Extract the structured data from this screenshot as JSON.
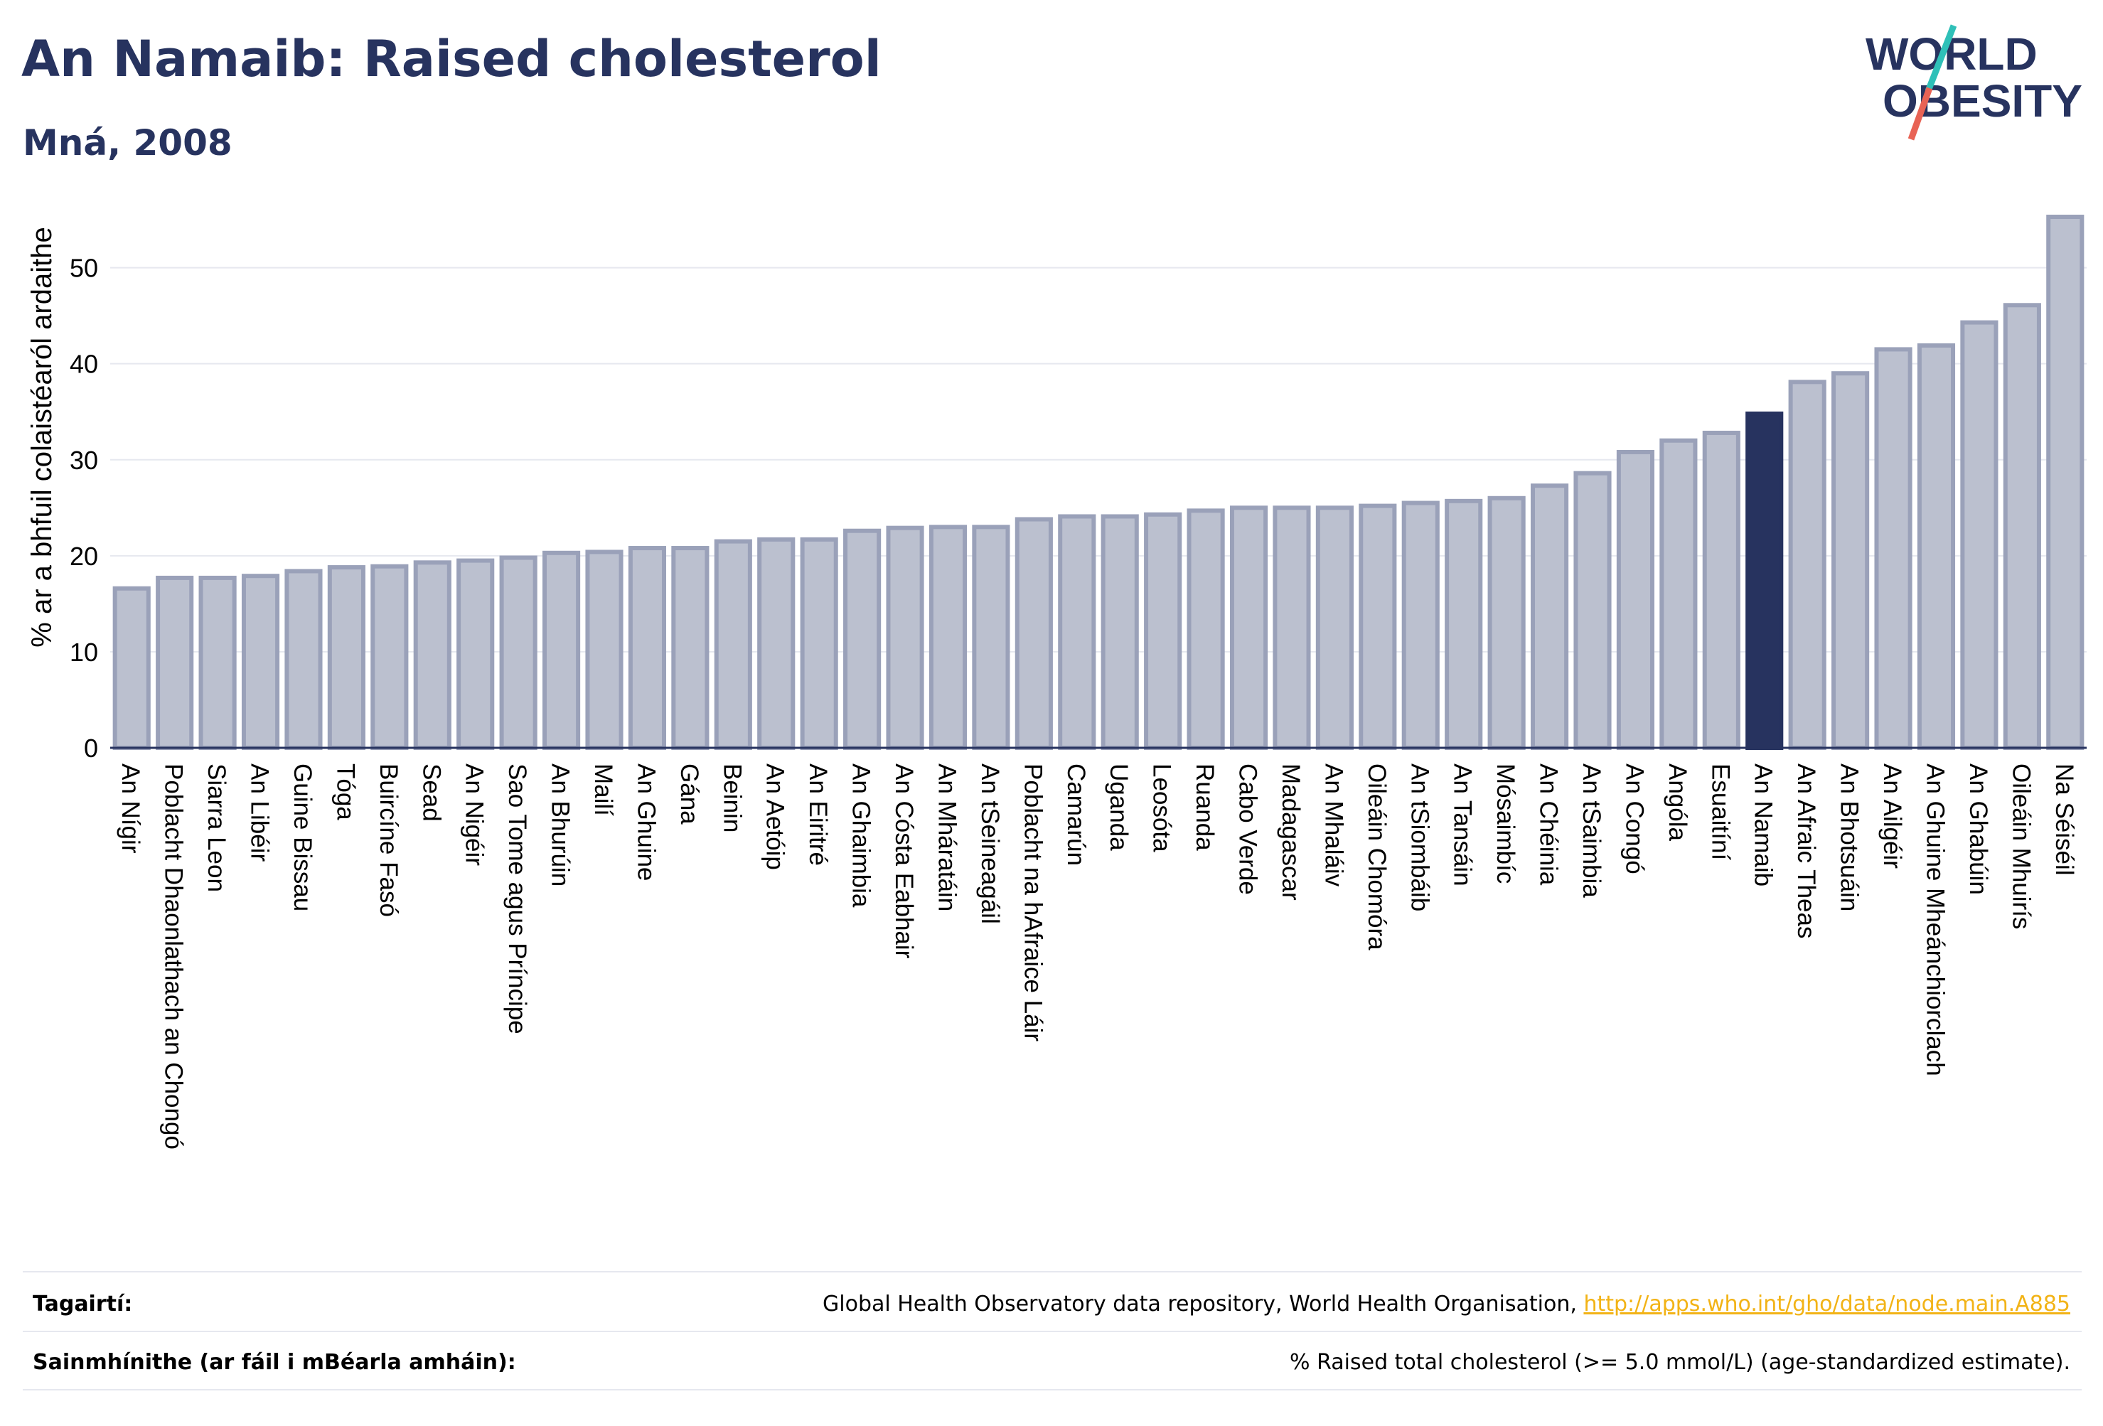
{
  "title": "An Namaib: Raised cholesterol",
  "subtitle": "Mná, 2008",
  "logo": {
    "line1": "WORLD",
    "line2": "OBESITY"
  },
  "colors": {
    "bar": "#bbc0cf",
    "bar_stroke": "#9aa1b9",
    "highlight": "#27335f",
    "grid": "#e6e8ef",
    "slash_teal": "#2fc0b8",
    "slash_red": "#e86355"
  },
  "footer": {
    "references_label": "Tagairtí:",
    "references_text": "Global Health Observatory data repository, World Health Organisation, ",
    "references_link": "http://apps.who.int/gho/data/node.main.A885",
    "definitions_label": "Sainmhínithe (ar fáil i mBéarla amháin):",
    "definitions_text": "% Raised total cholesterol (>= 5.0 mmol/L) (age-standardized estimate)."
  },
  "chart_data": {
    "type": "bar",
    "ylabel": "% ar a bhfuil colaistéaról ardaithe",
    "ylim": [
      0,
      56
    ],
    "yticks": [
      0,
      10,
      20,
      30,
      40,
      50
    ],
    "grid": true,
    "highlight": "An Namaib",
    "categories": [
      "An Nígir",
      "Poblacht Dhaonlathach an Chongó",
      "Siarra Leon",
      "An Libéir",
      "Guine Bissau",
      "Tóga",
      "Buircíne Fasó",
      "Sead",
      "An Nigéir",
      "Sao Tome agus Príncipe",
      "An Bhurúin",
      "Mailí",
      "An Ghuine",
      "Gána",
      "Beinin",
      "An Aetóip",
      "An Eiritré",
      "An Ghaimbia",
      "An Cósta Eabhair",
      "An Mháratáin",
      "An tSeineagáil",
      "Poblacht na hAfraice Láir",
      "Camarún",
      "Uganda",
      "Leosóta",
      "Ruanda",
      "Cabo Verde",
      "Madagascar",
      "An Mhaláiv",
      "Oileáin Chomóra",
      "An tSiombáib",
      "An Tansáin",
      "Mósaimbíc",
      "An Chéinia",
      "An tSaimbia",
      "An Congó",
      "Angóla",
      "Esuaitíní",
      "An Namaib",
      "An Afraic Theas",
      "An Bhotsuáin",
      "An Ailgéir",
      "An Ghuine Mheánchiorclach",
      "An Ghabúin",
      "Oileáin Mhuirís",
      "Na Séiséil"
    ],
    "values": [
      16.6,
      17.7,
      17.7,
      17.9,
      18.4,
      18.8,
      18.9,
      19.3,
      19.5,
      19.8,
      20.3,
      20.4,
      20.8,
      20.8,
      21.5,
      21.7,
      21.7,
      22.6,
      22.9,
      23.0,
      23.0,
      23.8,
      24.1,
      24.1,
      24.3,
      24.7,
      25.0,
      25.0,
      25.0,
      25.2,
      25.5,
      25.7,
      26.0,
      27.3,
      28.6,
      30.8,
      32.0,
      32.8,
      34.8,
      38.1,
      39.0,
      41.5,
      41.9,
      44.3,
      46.1,
      55.3
    ]
  }
}
